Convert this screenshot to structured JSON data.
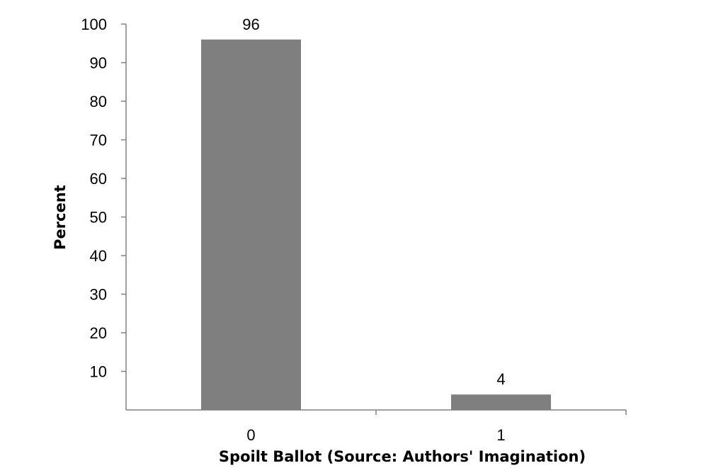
{
  "chart_data": {
    "type": "bar",
    "categories": [
      "0",
      "1"
    ],
    "values": [
      96,
      4
    ],
    "data_labels": [
      "96",
      "4"
    ],
    "xlabel": "Spoilt Ballot (Source: Authors' Imagination)",
    "ylabel": "Percent",
    "ylim": [
      0,
      100
    ],
    "yticks": [
      10,
      20,
      30,
      40,
      50,
      60,
      70,
      80,
      90,
      100
    ],
    "grid": false,
    "legend": "none",
    "colors": {
      "bar": "#7f7f7f",
      "axis": "#808080",
      "text": "#000000",
      "background": "#ffffff"
    }
  }
}
